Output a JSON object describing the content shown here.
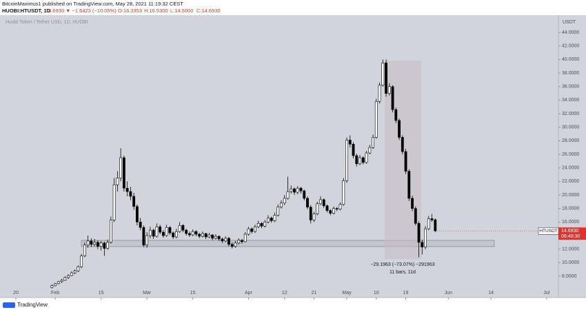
{
  "header": {
    "publisher": "BitcoinMaximus1 published on TradingView.com, May 28, 2021 11:19:32 CEST",
    "symbol": "HUOBI:HTUSDT, 1D",
    "price": "14.6930",
    "change": "▼ −1.6423 (−10.05%)",
    "open": "O:16.3353",
    "high": "H:16.5300",
    "low": "L:14.5000",
    "close": "C:14.6930"
  },
  "footer": {
    "brand": "TradingView"
  },
  "chart_data": {
    "type": "candlestick",
    "title": "Huobi Token / Tether USD, 1D, HUOBI",
    "y_unit": "USDT",
    "up_color": "#ffffff",
    "down_color": "#000000",
    "grid": false,
    "last_label": {
      "symbol": "HTUSDT",
      "price": "14.6930",
      "countdown": "06:40:30",
      "color": "#e0332f"
    },
    "annotations": [
      "−29.1963 (−73.07%) −291963",
      "11 bars, 11d"
    ],
    "xlim": [
      -3.8,
      165.6
    ],
    "ylim": [
      4.85,
      46.55
    ],
    "xticks": [
      {
        "value": 0,
        "label": "20"
      },
      {
        "value": 12,
        "label": "Feb"
      },
      {
        "value": 26,
        "label": "15"
      },
      {
        "value": 40,
        "label": "Mar"
      },
      {
        "value": 54,
        "label": "15"
      },
      {
        "value": 71,
        "label": "Apr"
      },
      {
        "value": 82,
        "label": "12"
      },
      {
        "value": 91,
        "label": "21"
      },
      {
        "value": 101,
        "label": "May"
      },
      {
        "value": 110,
        "label": "10"
      },
      {
        "value": 119,
        "label": "19"
      },
      {
        "value": 132,
        "label": "Jun"
      },
      {
        "value": 145,
        "label": "14"
      },
      {
        "value": 162,
        "label": "Jul"
      }
    ],
    "yticks": [
      {
        "value": 8,
        "label": "8.0000"
      },
      {
        "value": 10,
        "label": "10.0000"
      },
      {
        "value": 12,
        "label": "12.0000"
      },
      {
        "value": 14,
        "label": "14.0000"
      },
      {
        "value": 16,
        "label": "16.0000"
      },
      {
        "value": 18,
        "label": "18.0000"
      },
      {
        "value": 20,
        "label": "20.0000"
      },
      {
        "value": 22,
        "label": "22.0000"
      },
      {
        "value": 24,
        "label": "24.0000"
      },
      {
        "value": 26,
        "label": "26.0000"
      },
      {
        "value": 28,
        "label": "28.0000"
      },
      {
        "value": 30,
        "label": "30.0000"
      },
      {
        "value": 32,
        "label": "32.0000"
      },
      {
        "value": 34,
        "label": "34.0000"
      },
      {
        "value": 36,
        "label": "36.0000"
      },
      {
        "value": 38,
        "label": "38.0000"
      },
      {
        "value": 40,
        "label": "40.0000"
      },
      {
        "value": 42,
        "label": "42.0000"
      },
      {
        "value": 44,
        "label": "44.0000"
      }
    ],
    "x": [
      11,
      12,
      13,
      14,
      15,
      16,
      17,
      18,
      19,
      20,
      21,
      22,
      23,
      24,
      25,
      26,
      27,
      28,
      29,
      30,
      31,
      32,
      33,
      34,
      35,
      36,
      37,
      38,
      39,
      40,
      41,
      42,
      43,
      44,
      45,
      46,
      47,
      48,
      49,
      50,
      51,
      52,
      53,
      54,
      55,
      56,
      57,
      58,
      59,
      60,
      61,
      62,
      63,
      64,
      65,
      66,
      67,
      68,
      69,
      70,
      71,
      72,
      73,
      74,
      75,
      76,
      77,
      78,
      79,
      80,
      81,
      82,
      83,
      84,
      85,
      86,
      87,
      88,
      89,
      90,
      91,
      92,
      93,
      94,
      95,
      96,
      97,
      98,
      99,
      100,
      101,
      102,
      103,
      104,
      105,
      106,
      107,
      108,
      109,
      110,
      111,
      112,
      113,
      114,
      115,
      116,
      117,
      118,
      119,
      120,
      121,
      122,
      123,
      124,
      125,
      126,
      127,
      128
    ],
    "ohlc": [
      [
        6.3,
        6.8,
        6.2,
        6.6
      ],
      [
        6.6,
        7.0,
        6.5,
        6.9
      ],
      [
        6.9,
        7.3,
        6.8,
        7.2
      ],
      [
        7.2,
        7.6,
        7.0,
        7.4
      ],
      [
        7.4,
        8.0,
        7.3,
        7.8
      ],
      [
        7.8,
        8.3,
        7.6,
        8.1
      ],
      [
        8.1,
        8.7,
        8.0,
        8.5
      ],
      [
        8.5,
        9.0,
        8.3,
        8.8
      ],
      [
        8.8,
        9.6,
        8.6,
        9.4
      ],
      [
        9.4,
        11.3,
        9.2,
        11.0
      ],
      [
        11.0,
        13.0,
        10.8,
        12.6
      ],
      [
        12.6,
        14.0,
        12.2,
        13.2
      ],
      [
        13.2,
        13.6,
        12.3,
        12.7
      ],
      [
        12.7,
        13.5,
        12.4,
        13.0
      ],
      [
        13.0,
        13.3,
        12.0,
        12.4
      ],
      [
        12.4,
        13.2,
        11.8,
        12.9
      ],
      [
        12.9,
        13.1,
        11.0,
        12.1
      ],
      [
        12.1,
        13.4,
        11.9,
        13.0
      ],
      [
        13.0,
        16.8,
        12.8,
        16.3
      ],
      [
        16.3,
        22.5,
        16.0,
        21.5
      ],
      [
        21.5,
        23.5,
        20.5,
        22.5
      ],
      [
        22.5,
        26.9,
        22.0,
        25.5
      ],
      [
        25.5,
        25.8,
        20.5,
        21.0
      ],
      [
        21.0,
        22.0,
        19.8,
        20.5
      ],
      [
        20.5,
        21.2,
        19.2,
        19.8
      ],
      [
        19.8,
        20.3,
        17.8,
        18.3
      ],
      [
        18.3,
        18.6,
        15.5,
        16.0
      ],
      [
        16.0,
        16.6,
        14.8,
        15.2
      ],
      [
        15.2,
        15.5,
        12.3,
        12.6
      ],
      [
        12.6,
        14.5,
        12.2,
        14.0
      ],
      [
        14.0,
        15.3,
        13.6,
        14.8
      ],
      [
        14.8,
        15.0,
        13.5,
        13.9
      ],
      [
        13.9,
        15.8,
        13.7,
        15.3
      ],
      [
        15.3,
        15.6,
        14.2,
        14.5
      ],
      [
        14.5,
        14.8,
        13.7,
        14.0
      ],
      [
        14.0,
        15.6,
        13.8,
        15.2
      ],
      [
        15.2,
        15.4,
        14.1,
        14.4
      ],
      [
        14.4,
        14.6,
        13.5,
        13.8
      ],
      [
        13.8,
        15.0,
        13.6,
        14.6
      ],
      [
        14.6,
        16.0,
        14.4,
        15.5
      ],
      [
        15.5,
        15.7,
        14.5,
        14.8
      ],
      [
        14.8,
        15.0,
        14.0,
        14.3
      ],
      [
        14.3,
        14.6,
        13.8,
        14.1
      ],
      [
        14.1,
        14.9,
        13.9,
        14.6
      ],
      [
        14.6,
        14.8,
        13.9,
        14.2
      ],
      [
        14.2,
        14.4,
        13.6,
        13.9
      ],
      [
        13.9,
        14.6,
        13.7,
        14.3
      ],
      [
        14.3,
        14.4,
        13.5,
        13.8
      ],
      [
        13.8,
        14.4,
        13.6,
        14.1
      ],
      [
        14.1,
        14.2,
        13.3,
        13.6
      ],
      [
        13.6,
        14.2,
        13.4,
        13.9
      ],
      [
        13.9,
        14.0,
        13.2,
        13.5
      ],
      [
        13.5,
        13.7,
        12.9,
        13.2
      ],
      [
        13.2,
        13.9,
        13.0,
        13.6
      ],
      [
        13.6,
        13.8,
        12.4,
        12.7
      ],
      [
        12.7,
        13.0,
        12.1,
        12.4
      ],
      [
        12.4,
        13.2,
        12.2,
        12.9
      ],
      [
        12.9,
        13.6,
        12.7,
        13.3
      ],
      [
        13.3,
        13.5,
        12.8,
        13.1
      ],
      [
        13.1,
        14.5,
        13.0,
        14.2
      ],
      [
        14.2,
        15.3,
        14.0,
        15.0
      ],
      [
        15.0,
        15.2,
        14.3,
        14.6
      ],
      [
        14.6,
        15.6,
        14.4,
        15.3
      ],
      [
        15.3,
        16.2,
        15.1,
        15.8
      ],
      [
        15.8,
        16.0,
        15.1,
        15.4
      ],
      [
        15.4,
        16.3,
        15.2,
        16.0
      ],
      [
        16.0,
        17.0,
        15.8,
        16.6
      ],
      [
        16.6,
        16.8,
        15.9,
        16.2
      ],
      [
        16.2,
        17.4,
        16.0,
        17.0
      ],
      [
        17.0,
        18.6,
        16.8,
        18.2
      ],
      [
        18.2,
        19.2,
        18.0,
        18.8
      ],
      [
        18.8,
        20.0,
        18.5,
        19.5
      ],
      [
        19.5,
        22.7,
        19.3,
        20.5
      ],
      [
        20.5,
        21.4,
        20.2,
        20.9
      ],
      [
        20.9,
        21.1,
        20.0,
        20.4
      ],
      [
        20.4,
        21.3,
        20.1,
        21.0
      ],
      [
        21.0,
        21.2,
        20.2,
        20.6
      ],
      [
        20.6,
        20.8,
        19.2,
        19.5
      ],
      [
        19.5,
        19.8,
        17.9,
        18.2
      ],
      [
        18.2,
        18.5,
        15.8,
        16.3
      ],
      [
        16.3,
        17.5,
        16.0,
        17.2
      ],
      [
        17.2,
        19.0,
        17.0,
        18.7
      ],
      [
        18.7,
        19.8,
        18.5,
        19.3
      ],
      [
        19.3,
        19.5,
        18.1,
        18.4
      ],
      [
        18.4,
        18.6,
        17.4,
        17.7
      ],
      [
        17.7,
        17.9,
        17.0,
        17.3
      ],
      [
        17.3,
        18.3,
        17.1,
        18.0
      ],
      [
        18.0,
        18.2,
        17.6,
        17.9
      ],
      [
        17.9,
        18.9,
        17.7,
        18.6
      ],
      [
        18.6,
        22.5,
        18.4,
        22.1
      ],
      [
        22.1,
        28.5,
        21.8,
        28.1
      ],
      [
        28.1,
        28.8,
        27.0,
        27.5
      ],
      [
        27.5,
        27.8,
        25.4,
        25.8
      ],
      [
        25.8,
        26.1,
        24.2,
        24.6
      ],
      [
        24.6,
        25.9,
        24.4,
        25.5
      ],
      [
        25.5,
        25.7,
        24.5,
        24.8
      ],
      [
        24.8,
        26.5,
        24.6,
        26.2
      ],
      [
        26.2,
        27.4,
        26.0,
        27.0
      ],
      [
        27.0,
        28.9,
        26.8,
        28.5
      ],
      [
        28.5,
        34.2,
        28.3,
        33.8
      ],
      [
        33.8,
        36.6,
        33.5,
        36.2
      ],
      [
        36.2,
        40.0,
        36.0,
        39.5
      ],
      [
        39.5,
        40.0,
        34.5,
        35.0
      ],
      [
        35.0,
        36.5,
        34.7,
        36.0
      ],
      [
        36.0,
        36.2,
        32.2,
        32.6
      ],
      [
        32.6,
        32.9,
        30.6,
        31.0
      ],
      [
        31.0,
        31.3,
        28.1,
        28.5
      ],
      [
        28.5,
        28.8,
        26.0,
        26.4
      ],
      [
        26.4,
        26.8,
        23.1,
        23.5
      ],
      [
        23.5,
        23.8,
        19.1,
        19.5
      ],
      [
        19.5,
        19.9,
        17.6,
        18.0
      ],
      [
        18.0,
        18.3,
        15.5,
        15.8
      ],
      [
        15.8,
        16.1,
        10.8,
        13.0
      ],
      [
        13.0,
        13.4,
        11.2,
        12.3
      ],
      [
        12.3,
        15.4,
        12.0,
        15.0
      ],
      [
        15.0,
        16.9,
        14.8,
        16.5
      ],
      [
        16.5,
        17.2,
        16.0,
        16.3
      ],
      [
        16.3353,
        16.53,
        14.5,
        14.693
      ]
    ]
  }
}
